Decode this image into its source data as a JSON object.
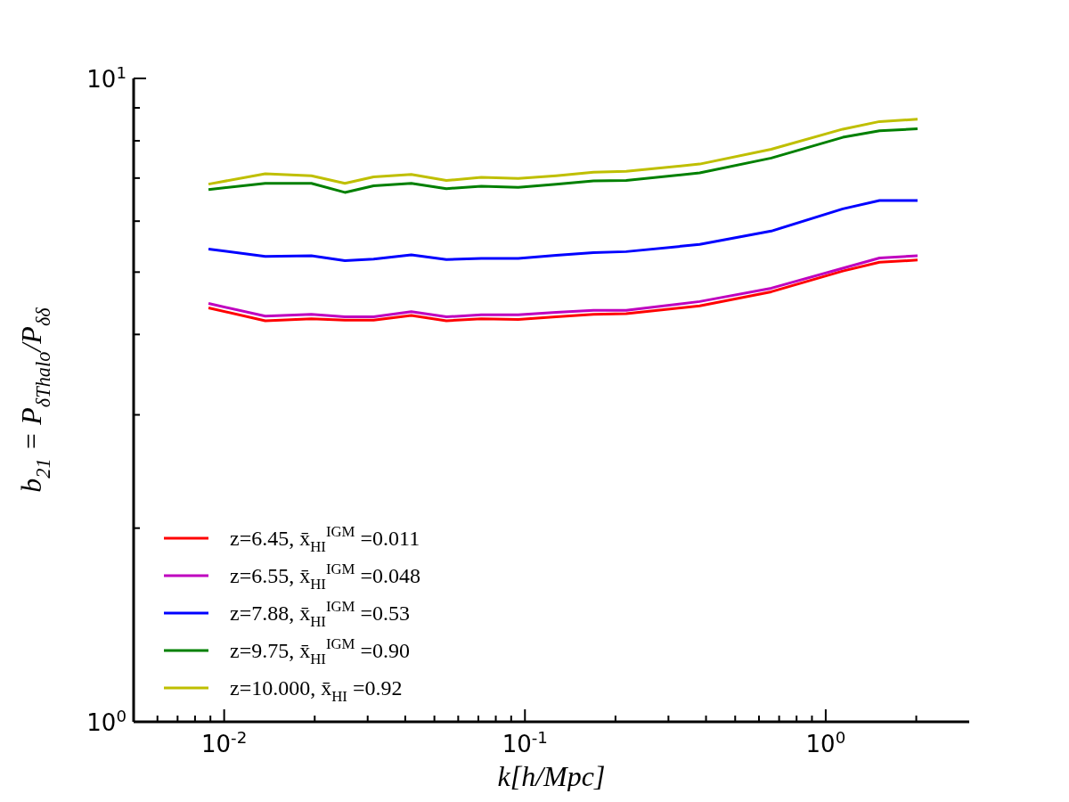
{
  "chart_data": {
    "type": "line",
    "xlabel": "k[h/Mpc]",
    "ylabel": "b$_{21}$ = P$_{δThalo}$/P$_{δδ}$",
    "x": [
      0.00887,
      0.0137,
      0.0195,
      0.0252,
      0.0314,
      0.0419,
      0.0548,
      0.0716,
      0.095,
      0.127,
      0.169,
      0.217,
      0.381,
      0.659,
      1.14,
      1.51,
      2.02
    ],
    "series": [
      {
        "name": "z=6.45, x̄$_{HI}$$^{IGM}$ =0.011",
        "color": "#ff0000",
        "values": [
          4.4,
          4.2,
          4.23,
          4.21,
          4.21,
          4.28,
          4.2,
          4.23,
          4.22,
          4.26,
          4.3,
          4.31,
          4.43,
          4.66,
          5.02,
          5.18,
          5.22
        ]
      },
      {
        "name": "z=6.55, x̄$_{HI}$$^{IGM}$ =0.048",
        "color": "#bf00bf",
        "values": [
          4.47,
          4.27,
          4.3,
          4.26,
          4.26,
          4.34,
          4.26,
          4.29,
          4.29,
          4.33,
          4.36,
          4.36,
          4.5,
          4.72,
          5.07,
          5.26,
          5.3
        ]
      },
      {
        "name": "z=7.88, x̄$_{HI}$$^{IGM}$ =0.53",
        "color": "#0000ff",
        "values": [
          5.43,
          5.29,
          5.3,
          5.21,
          5.24,
          5.32,
          5.23,
          5.25,
          5.25,
          5.31,
          5.36,
          5.38,
          5.52,
          5.79,
          6.27,
          6.46,
          6.46
        ]
      },
      {
        "name": "z=9.75, x̄$_{HI}$$^{IGM}$ =0.90",
        "color": "#008000",
        "values": [
          6.72,
          6.87,
          6.87,
          6.65,
          6.81,
          6.87,
          6.74,
          6.8,
          6.77,
          6.85,
          6.93,
          6.94,
          7.13,
          7.52,
          8.1,
          8.29,
          8.35
        ]
      },
      {
        "name": "z=10.000, x̄$_{HI}$ =0.92",
        "color": "#bfbf00",
        "values": [
          6.85,
          7.11,
          7.06,
          6.87,
          7.03,
          7.09,
          6.94,
          7.02,
          6.99,
          7.06,
          7.15,
          7.17,
          7.36,
          7.76,
          8.34,
          8.57,
          8.64
        ]
      }
    ],
    "log": "xy",
    "xlim": [
      0.005,
      3
    ],
    "ylim": [
      1,
      10
    ],
    "xticks": [
      {
        "value": 0.006,
        "label": null
      },
      {
        "value": 0.007,
        "label": null
      },
      {
        "value": 0.008,
        "label": null
      },
      {
        "value": 0.009,
        "label": null
      },
      {
        "value": 0.01,
        "label": "10$^{-2}$"
      },
      {
        "value": 0.02,
        "label": null
      },
      {
        "value": 0.03,
        "label": null
      },
      {
        "value": 0.04,
        "label": null
      },
      {
        "value": 0.05,
        "label": null
      },
      {
        "value": 0.06,
        "label": null
      },
      {
        "value": 0.07,
        "label": null
      },
      {
        "value": 0.08,
        "label": null
      },
      {
        "value": 0.09,
        "label": null
      },
      {
        "value": 0.1,
        "label": "10$^{-1}$"
      },
      {
        "value": 0.2,
        "label": null
      },
      {
        "value": 0.3,
        "label": null
      },
      {
        "value": 0.4,
        "label": null
      },
      {
        "value": 0.5,
        "label": null
      },
      {
        "value": 0.6,
        "label": null
      },
      {
        "value": 0.7,
        "label": null
      },
      {
        "value": 0.8,
        "label": null
      },
      {
        "value": 0.9,
        "label": null
      },
      {
        "value": 1,
        "label": "10$^{0}$"
      },
      {
        "value": 2,
        "label": null
      }
    ],
    "yticks": [
      {
        "value": 1,
        "label": "10$^{0}$"
      },
      {
        "value": 2,
        "label": null
      },
      {
        "value": 3,
        "label": null
      },
      {
        "value": 4,
        "label": null
      },
      {
        "value": 5,
        "label": null
      },
      {
        "value": 6,
        "label": null
      },
      {
        "value": 7,
        "label": null
      },
      {
        "value": 8,
        "label": null
      },
      {
        "value": 9,
        "label": null
      },
      {
        "value": 10,
        "label": "10$^{1}$"
      }
    ],
    "grid": false,
    "legend": "bottom left",
    "marker": "none",
    "line_style": "solid"
  }
}
